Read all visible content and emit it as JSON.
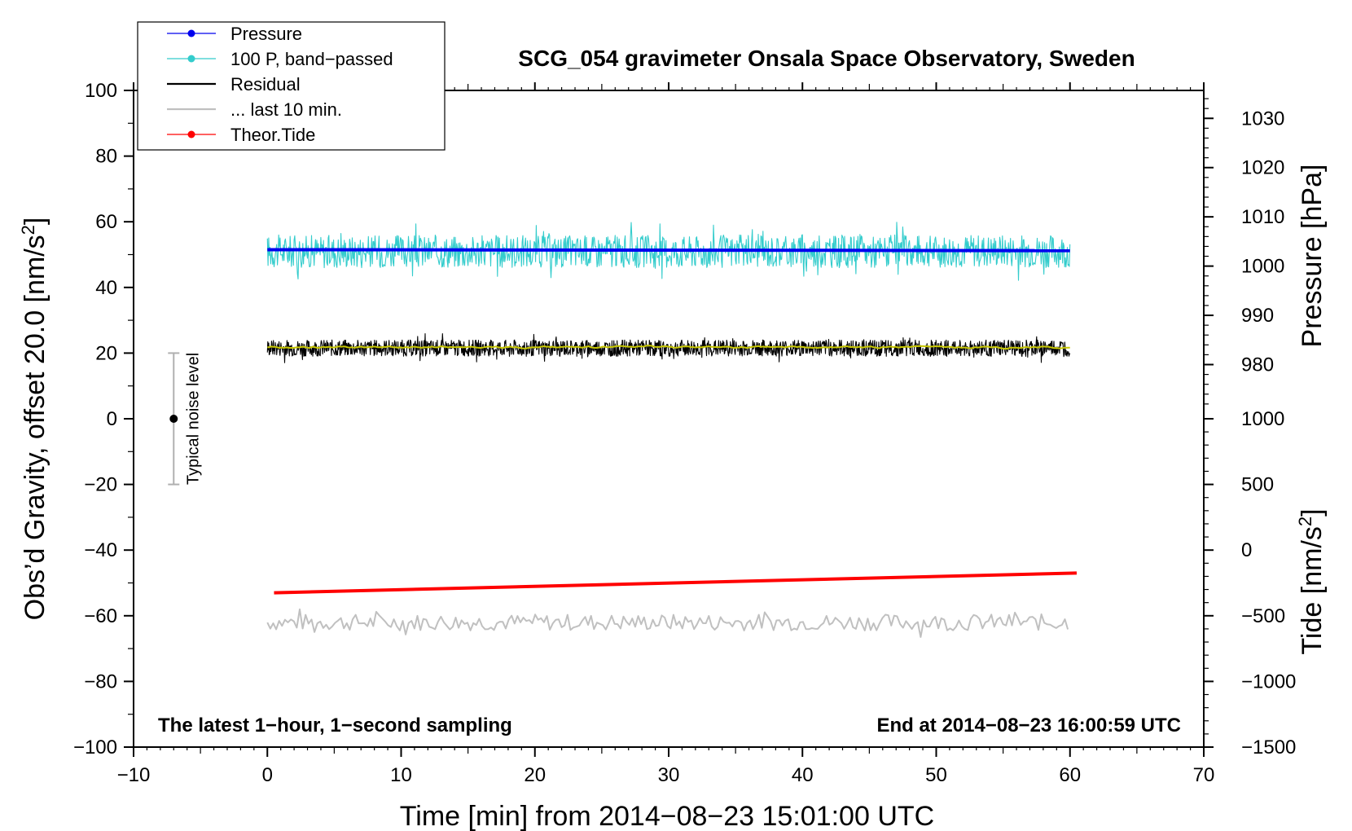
{
  "chart_data": {
    "type": "line",
    "title": "SCG_054 gravimeter Onsala Space Observatory, Sweden",
    "xlabel": "Time [min] from 2014−08−23 15:01:00 UTC",
    "ylabel_left": "Obs’d Gravity, offset 20.0 [nm/s",
    "ylabel_left_sup": "2",
    "ylabel_left_end": "]",
    "ylabel_right_pressure": "Pressure [hPa]",
    "ylabel_right_tide": "Tide [nm/s",
    "ylabel_right_tide_sup": "2",
    "ylabel_right_tide_end": "]",
    "xlim": [
      -10,
      70
    ],
    "ylim": [
      -100,
      100
    ],
    "x_ticks": [
      "−10",
      "0",
      "10",
      "20",
      "30",
      "40",
      "50",
      "60",
      "70"
    ],
    "x_tick_values": [
      -10,
      0,
      10,
      20,
      30,
      40,
      50,
      60,
      70
    ],
    "y_ticks": [
      "100",
      "80",
      "60",
      "40",
      "20",
      "0",
      "−20",
      "−40",
      "−60",
      "−80",
      "−100"
    ],
    "y_tick_values": [
      100,
      80,
      60,
      40,
      20,
      0,
      -20,
      -40,
      -60,
      -80,
      -100
    ],
    "pressure_ticks": [
      "1030",
      "1020",
      "1010",
      "1000",
      "990",
      "980"
    ],
    "pressure_tick_values": [
      1030,
      1020,
      1010,
      1000,
      990,
      980
    ],
    "pressure_mapping": {
      "hpa_at_y0": 969.0,
      "hpa_per_unit": 0.6667
    },
    "tide_ticks": [
      "1000",
      "500",
      "0",
      "−500",
      "−1000",
      "−1500"
    ],
    "tide_tick_values": [
      1000,
      500,
      0,
      -500,
      -1000,
      -1500
    ],
    "tide_mapping": {
      "nms2_at_ym100": -1500,
      "nms2_per_unit": 25
    },
    "legend": [
      {
        "label": "Pressure",
        "color": "#0000ee",
        "marker": true
      },
      {
        "label": "100 P, band−passed",
        "color": "#33cccc",
        "marker": true
      },
      {
        "label": "Residual",
        "color": "#000000",
        "marker": false
      },
      {
        "label": "... last 10 min.",
        "color": "#c0c0c0",
        "marker": false
      },
      {
        "label": "Theor.Tide",
        "color": "#ff0000",
        "marker": true
      }
    ],
    "annotation_left": "The latest 1−hour, 1−second sampling",
    "annotation_right": "End at 2014−08−23 16:00:59 UTC",
    "noise_label": "Typical noise level",
    "noise_bar": {
      "x": -7,
      "center": 0,
      "low": -20,
      "high": 20
    },
    "series": [
      {
        "name": "Pressure",
        "color": "#0000ee",
        "x_start": 0,
        "x_end": 60,
        "y_start": 51.5,
        "y_end": 51.2,
        "noise": 0
      },
      {
        "name": "100 P, band−passed",
        "color": "#33cccc",
        "x_start": 0,
        "x_end": 60,
        "y_center": 51,
        "noise_amplitude": 5
      },
      {
        "name": "Residual",
        "color": "#000000",
        "x_start": 0,
        "x_end": 60,
        "y_center": 21.5,
        "noise_amplitude": 2.5
      },
      {
        "name": "Residual (smoothed)",
        "color": "#c8c800",
        "x_start": 0,
        "x_end": 60,
        "y_center": 21.8,
        "noise_amplitude": 0.6
      },
      {
        "name": "... last 10 min.",
        "color": "#c0c0c0",
        "x_start": 0,
        "x_end": 60,
        "y_center": -62,
        "noise_amplitude": 2.5
      },
      {
        "name": "Theor.Tide",
        "color": "#ff0000",
        "x_start": 0.5,
        "x_end": 60.5,
        "y_start": -53,
        "y_end": -47
      }
    ]
  }
}
